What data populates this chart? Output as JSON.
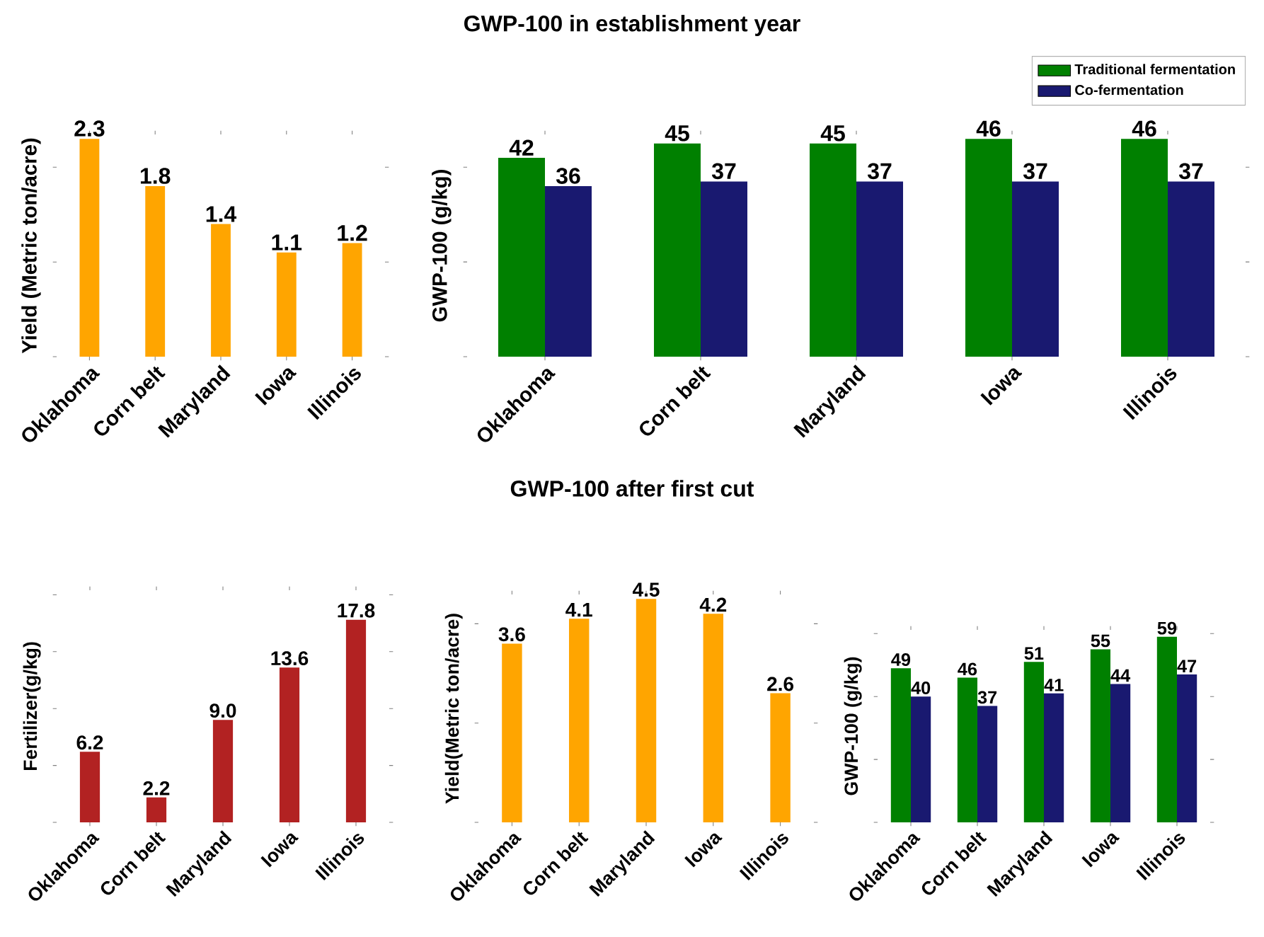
{
  "chart_data": [
    {
      "type": "other",
      "title": "GWP-100 in establishment year"
    },
    {
      "type": "bar",
      "ylabel": "Yield (Metric ton/acre)",
      "categories": [
        "Oklahoma",
        "Corn belt",
        "Maryland",
        "Iowa",
        "Illinois"
      ],
      "series": [
        {
          "color": "#ffa500",
          "values": [
            2.3,
            1.8,
            1.4,
            1.1,
            1.2
          ]
        }
      ],
      "yticks": [
        {
          "value": 0,
          "label": null
        },
        {
          "value": 1,
          "label": null
        },
        {
          "value": 2,
          "label": null
        }
      ],
      "tick_labels": "x",
      "data_labels": true
    },
    {
      "type": "bar",
      "ylabel": "GWP-100 (g/kg)",
      "categories": [
        "Oklahoma",
        "Corn belt",
        "Maryland",
        "Iowa",
        "Illinois"
      ],
      "series": [
        {
          "name": "Traditional fermentation",
          "color": "#008000",
          "values": [
            42,
            45,
            45,
            46,
            46
          ]
        },
        {
          "name": "Co-fermentation",
          "color": "#191970",
          "values": [
            36,
            37,
            37,
            37,
            37
          ]
        }
      ],
      "yticks": [
        {
          "value": 0,
          "label": null
        },
        {
          "value": 20,
          "label": null
        },
        {
          "value": 40,
          "label": null
        }
      ],
      "tick_labels": "x",
      "data_labels": true,
      "legend": "top right"
    },
    {
      "type": "other",
      "title": "GWP-100 after first cut"
    },
    {
      "type": "bar",
      "ylabel": "Fertilizer(g/kg)",
      "categories": [
        "Oklahoma",
        "Corn belt",
        "Maryland",
        "Iowa",
        "Illinois"
      ],
      "series": [
        {
          "color": "#b22222",
          "values": [
            6.2,
            2.2,
            9.0,
            13.6,
            17.8
          ],
          "value_labels": [
            "6.2",
            "2.2",
            "9.0",
            "13.6",
            "17.8"
          ]
        }
      ],
      "yticks": [
        {
          "value": 0,
          "label": null
        },
        {
          "value": 5,
          "label": null
        },
        {
          "value": 10,
          "label": null
        },
        {
          "value": 15,
          "label": null
        },
        {
          "value": 20,
          "label": null
        }
      ],
      "tick_labels": "x"
    },
    {
      "type": "bar",
      "ylabel": "Yield(Metric ton/acre)",
      "categories": [
        "Oklahoma",
        "Corn belt",
        "Maryland",
        "Iowa",
        "Illinois"
      ],
      "series": [
        {
          "color": "#ffa500",
          "values": [
            3.6,
            4.1,
            4.5,
            4.2,
            2.6
          ]
        }
      ],
      "yticks": [
        {
          "value": 0,
          "label": null
        },
        {
          "value": 2,
          "label": null
        },
        {
          "value": 4,
          "label": null
        }
      ],
      "tick_labels": "x",
      "data_labels": true
    },
    {
      "type": "bar",
      "ylabel": "GWP-100 (g/kg)",
      "categories": [
        "Oklahoma",
        "Corn belt",
        "Maryland",
        "Iowa",
        "Illinois"
      ],
      "series": [
        {
          "color": "#008000",
          "values": [
            49,
            46,
            51,
            55,
            59
          ]
        },
        {
          "color": "#191970",
          "values": [
            40,
            37,
            41,
            44,
            47
          ]
        }
      ],
      "yticks": [
        {
          "value": 0,
          "label": null
        },
        {
          "value": 20,
          "label": null
        },
        {
          "value": 40,
          "label": null
        },
        {
          "value": 60,
          "label": null
        }
      ],
      "tick_labels": "x",
      "data_labels": true
    }
  ]
}
